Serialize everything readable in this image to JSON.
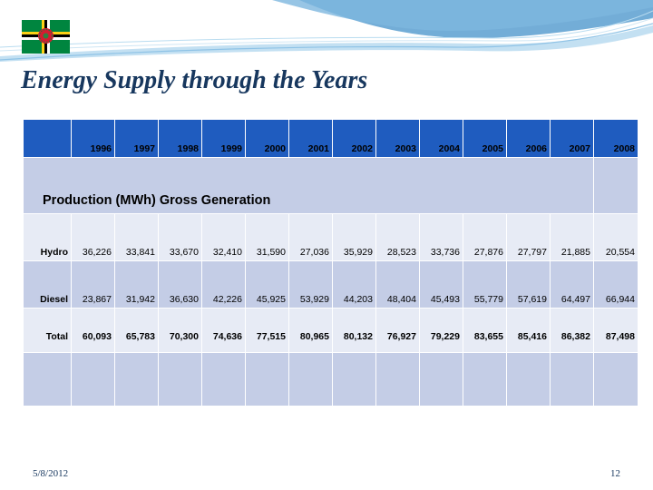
{
  "slide": {
    "title": "Energy Supply through the Years",
    "date": "5/8/2012",
    "page_number": "12"
  },
  "colors": {
    "title": "#17375e",
    "header_fill": "#1f5cbf",
    "band_dark": "#c4cde6",
    "band_light": "#e7ebf5",
    "wave_dark": "#5b9fd0",
    "wave_light": "#a9d3ec"
  },
  "flag": {
    "country": "Dominica",
    "green": "#00853f",
    "yellow": "#fcd116",
    "black": "#000000",
    "white": "#ffffff",
    "red": "#d41c30"
  },
  "table": {
    "years": [
      "1996",
      "1997",
      "1998",
      "1999",
      "2000",
      "2001",
      "2002",
      "2003",
      "2004",
      "2005",
      "2006",
      "2007",
      "2008"
    ],
    "section_label": "Production (MWh) Gross Generation",
    "rows": [
      {
        "label": "Hydro",
        "values": [
          "36,226",
          "33,841",
          "33,670",
          "32,410",
          "31,590",
          "27,036",
          "35,929",
          "28,523",
          "33,736",
          "27,876",
          "27,797",
          "21,885",
          "20,554"
        ]
      },
      {
        "label": "Diesel",
        "values": [
          "23,867",
          "31,942",
          "36,630",
          "42,226",
          "45,925",
          "53,929",
          "44,203",
          "48,404",
          "45,493",
          "55,779",
          "57,619",
          "64,497",
          "66,944"
        ]
      },
      {
        "label": "Total",
        "values": [
          "60,093",
          "65,783",
          "70,300",
          "74,636",
          "77,515",
          "80,965",
          "80,132",
          "76,927",
          "79,229",
          "83,655",
          "85,416",
          "86,382",
          "87,498"
        ]
      }
    ]
  }
}
